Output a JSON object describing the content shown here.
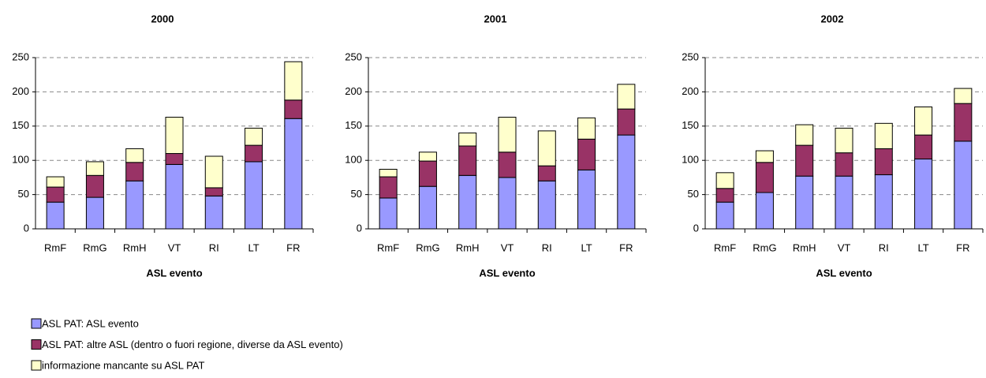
{
  "chart_data": [
    {
      "type": "bar",
      "stacked": true,
      "title": "2000",
      "xlabel": "ASL evento",
      "categories": [
        "RmF",
        "RmG",
        "RmH",
        "VT",
        "RI",
        "LT",
        "FR"
      ],
      "ylim": [
        0,
        250
      ],
      "yticks": [
        0,
        50,
        100,
        150,
        200,
        250
      ],
      "grid": true,
      "series": [
        {
          "name": "ASL PAT: ASL evento",
          "color": "#9999ff",
          "values": [
            39,
            46,
            70,
            94,
            48,
            98,
            161
          ]
        },
        {
          "name": "ASL PAT: altre ASL (dentro o fuori regione, diverse da ASL evento)",
          "color": "#993366",
          "values": [
            22,
            32,
            27,
            16,
            12,
            24,
            27
          ]
        },
        {
          "name": "informazione mancante su ASL PAT",
          "color": "#ffffcc",
          "values": [
            15,
            20,
            20,
            53,
            46,
            25,
            56
          ]
        }
      ]
    },
    {
      "type": "bar",
      "stacked": true,
      "title": "2001",
      "xlabel": "ASL evento",
      "categories": [
        "RmF",
        "RmG",
        "RmH",
        "VT",
        "RI",
        "LT",
        "FR"
      ],
      "ylim": [
        0,
        250
      ],
      "yticks": [
        0,
        50,
        100,
        150,
        200,
        250
      ],
      "grid": true,
      "series": [
        {
          "color": "#9999ff",
          "values": [
            45,
            62,
            78,
            75,
            70,
            86,
            137
          ]
        },
        {
          "color": "#993366",
          "values": [
            31,
            37,
            43,
            37,
            22,
            45,
            38
          ]
        },
        {
          "color": "#ffffcc",
          "values": [
            11,
            13,
            19,
            51,
            51,
            31,
            36
          ]
        }
      ]
    },
    {
      "type": "bar",
      "stacked": true,
      "title": "2002",
      "xlabel": "ASL evento",
      "categories": [
        "RmF",
        "RmG",
        "RmH",
        "VT",
        "RI",
        "LT",
        "FR"
      ],
      "ylim": [
        0,
        250
      ],
      "yticks": [
        0,
        50,
        100,
        150,
        200,
        250
      ],
      "grid": true,
      "series": [
        {
          "color": "#9999ff",
          "values": [
            39,
            53,
            77,
            77,
            79,
            102,
            128
          ]
        },
        {
          "color": "#993366",
          "values": [
            20,
            44,
            45,
            34,
            38,
            35,
            55
          ]
        },
        {
          "color": "#ffffcc",
          "values": [
            23,
            17,
            30,
            36,
            37,
            41,
            22
          ]
        }
      ]
    }
  ]
}
